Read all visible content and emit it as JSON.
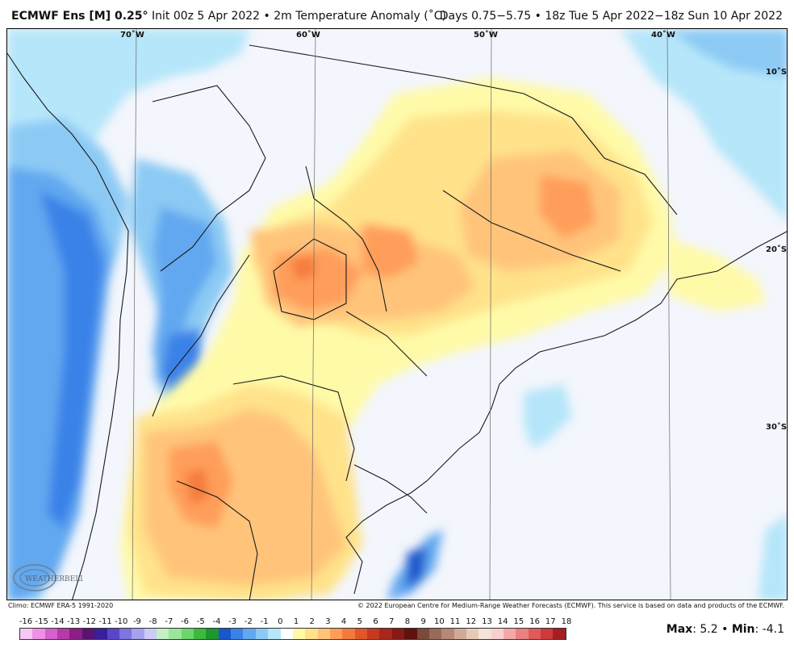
{
  "header": {
    "model": "ECMWF Ens [M] 0.25",
    "degree": "°",
    "init_text": "Init 00z 5 Apr 2022 • 2m Temperature Anomaly (˚C)",
    "valid_text": "Days 0.75−5.75 • 18z Tue 5 Apr 2022−18z Sun 10 Apr 2022"
  },
  "map": {
    "lon_labels": [
      "70˚W",
      "60˚W",
      "50˚W",
      "40˚W"
    ],
    "lat_labels": [
      "10˚S",
      "20˚S",
      "30˚S"
    ],
    "watermark": "WEATHERBELL"
  },
  "footer": {
    "climo": "Climo: ECMWF ERA-5 1991-2020",
    "copyright": "© 2022 European Centre for Medium-Range Weather Forecasts (ECMWF). This service is based on data and products of the ECMWF.",
    "max_label": "Max",
    "max_value": ": 5.2 • ",
    "min_label": "Min",
    "min_value": ": -4.1"
  },
  "legend": {
    "ticks": [
      "-16",
      "-15",
      "-14",
      "-13",
      "-12",
      "-11",
      "-10",
      "-9",
      "-8",
      "-7",
      "-6",
      "-5",
      "-4",
      "-3",
      "-2",
      "-1",
      "0",
      "1",
      "2",
      "3",
      "4",
      "5",
      "6",
      "7",
      "8",
      "9",
      "10",
      "11",
      "12",
      "13",
      "14",
      "15",
      "16",
      "17",
      "18"
    ],
    "colors": [
      "#f8c8f4",
      "#ee90e6",
      "#d660cc",
      "#b83aa8",
      "#8c1e86",
      "#5a1470",
      "#3a1e9a",
      "#5a46c8",
      "#7e74e2",
      "#a6a2ee",
      "#cccaf6",
      "#c4f0c4",
      "#9ce69c",
      "#6cd66c",
      "#3eb83e",
      "#1e962e",
      "#1a56cc",
      "#3a82e8",
      "#62a8f0",
      "#8ccaf4",
      "#b6e6fa",
      "#ffffff",
      "#fffaa8",
      "#ffe28a",
      "#ffc47a",
      "#ff9e5a",
      "#f47a3c",
      "#e2562a",
      "#c83a1e",
      "#a8261a",
      "#861a14",
      "#5e120e",
      "#7a4a3a",
      "#9a6a58",
      "#b68a78",
      "#d0aa98",
      "#e6cab8",
      "#f6e2d6",
      "#f8d0d0",
      "#f2a8a8",
      "#ea8080",
      "#e05a5a",
      "#cc3a3a",
      "#a61e22"
    ]
  }
}
